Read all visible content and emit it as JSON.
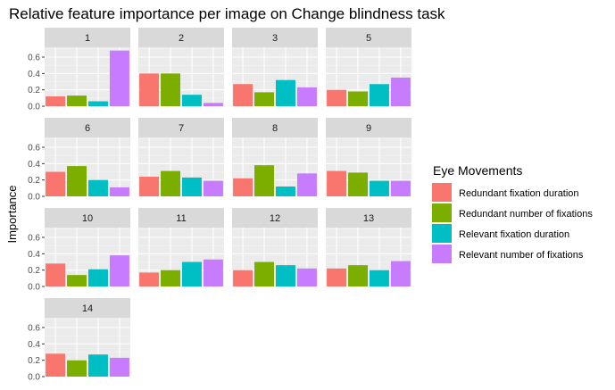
{
  "chart_data": {
    "type": "bar",
    "title": "Relative feature importance per image on Change blindness task",
    "xlabel": "",
    "ylabel": "Importance",
    "ylim": [
      0,
      0.72
    ],
    "yticks": [
      "0.0",
      "0.2",
      "0.4",
      "0.6"
    ],
    "ytick_values": [
      0,
      0.2,
      0.4,
      0.6
    ],
    "grid": true,
    "legend": {
      "title": "Eye Movements",
      "position": "right",
      "entries": [
        "Redundant fixation duration",
        "Redundant number of fixations",
        "Relevant  fixation duration",
        "Relevant  number of fixations"
      ]
    },
    "colors": [
      "#F8766D",
      "#7CAE00",
      "#00BFC4",
      "#C77CFF"
    ],
    "panels": [
      {
        "label": "1",
        "values": [
          0.12,
          0.13,
          0.06,
          0.68
        ]
      },
      {
        "label": "2",
        "values": [
          0.4,
          0.4,
          0.14,
          0.04
        ]
      },
      {
        "label": "3",
        "values": [
          0.27,
          0.17,
          0.32,
          0.23
        ]
      },
      {
        "label": "5",
        "values": [
          0.2,
          0.18,
          0.27,
          0.35
        ]
      },
      {
        "label": "6",
        "values": [
          0.3,
          0.37,
          0.2,
          0.11
        ]
      },
      {
        "label": "7",
        "values": [
          0.24,
          0.31,
          0.23,
          0.19
        ]
      },
      {
        "label": "8",
        "values": [
          0.22,
          0.38,
          0.12,
          0.28
        ]
      },
      {
        "label": "9",
        "values": [
          0.31,
          0.29,
          0.19,
          0.19
        ]
      },
      {
        "label": "10",
        "values": [
          0.28,
          0.14,
          0.21,
          0.38
        ]
      },
      {
        "label": "11",
        "values": [
          0.17,
          0.2,
          0.3,
          0.33
        ]
      },
      {
        "label": "12",
        "values": [
          0.2,
          0.3,
          0.26,
          0.22
        ]
      },
      {
        "label": "13",
        "values": [
          0.22,
          0.26,
          0.2,
          0.31
        ]
      },
      {
        "label": "14",
        "values": [
          0.28,
          0.2,
          0.27,
          0.23
        ]
      }
    ]
  }
}
